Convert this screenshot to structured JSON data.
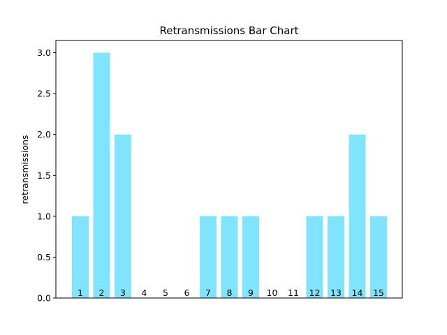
{
  "chart_data": {
    "type": "bar",
    "title": "Retransmissions Bar Chart",
    "xlabel": "",
    "ylabel": "retransmissions",
    "categories": [
      "1",
      "2",
      "3",
      "4",
      "5",
      "6",
      "7",
      "8",
      "9",
      "10",
      "11",
      "12",
      "13",
      "14",
      "15"
    ],
    "values": [
      1,
      3,
      2,
      0,
      0,
      0,
      1,
      1,
      1,
      0,
      0,
      1,
      1,
      2,
      1
    ],
    "ylim": [
      0,
      3.15
    ],
    "yticks": [
      0.0,
      0.5,
      1.0,
      1.5,
      2.0,
      2.5,
      3.0
    ],
    "ytick_labels": [
      "0.0",
      "0.5",
      "1.0",
      "1.5",
      "2.0",
      "2.5",
      "3.0"
    ],
    "bar_color": "#80e5fc",
    "grid": false,
    "legend": "none"
  }
}
